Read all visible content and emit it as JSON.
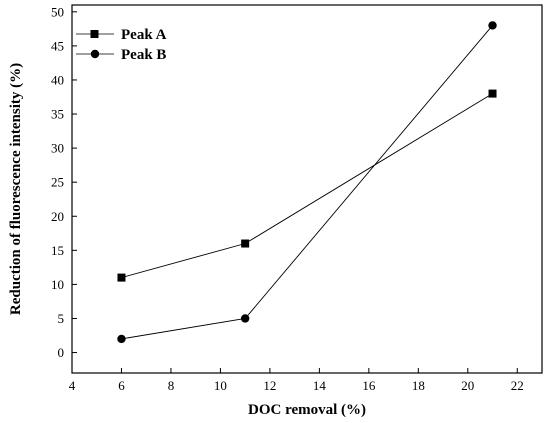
{
  "chart_data": {
    "type": "line",
    "xlabel": "DOC removal (%)",
    "ylabel": "Reduction of fluorescence intensity (%)",
    "xlim": [
      4,
      23
    ],
    "ylim": [
      -3,
      51
    ],
    "x_ticks": [
      "4",
      "6",
      "8",
      "10",
      "12",
      "14",
      "16",
      "18",
      "20",
      "22"
    ],
    "y_ticks": [
      "0",
      "5",
      "10",
      "15",
      "20",
      "25",
      "30",
      "35",
      "40",
      "45",
      "50"
    ],
    "grid": false,
    "legend_position": "top-left",
    "series": [
      {
        "name": "Peak A",
        "marker": "square",
        "color": "#000000",
        "x": [
          6,
          11,
          21
        ],
        "y": [
          11,
          16,
          38
        ]
      },
      {
        "name": "Peak B",
        "marker": "circle",
        "color": "#000000",
        "x": [
          6,
          11,
          21
        ],
        "y": [
          2,
          5,
          48
        ]
      }
    ]
  }
}
